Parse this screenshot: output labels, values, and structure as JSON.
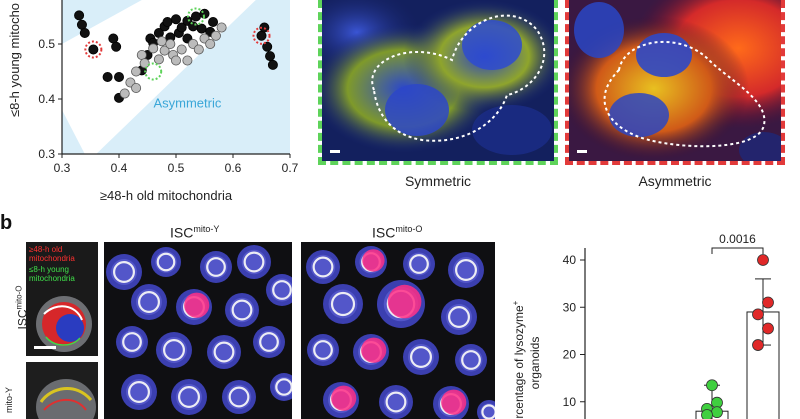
{
  "panel_b_letter": "b",
  "scatter": {
    "ylabel": "≤8-h young mitocho",
    "xlabel": "≥48-h old mitochondria",
    "region_label": "Asymmetric",
    "x_ticks": [
      "0.3",
      "0.4",
      "0.5",
      "0.6",
      "0.7"
    ],
    "y_ticks": [
      "0.5",
      "0.4",
      "0.3"
    ]
  },
  "micrographs": {
    "symmetric_caption": "Symmetric",
    "asymmetric_caption": "Asymmetric"
  },
  "panel_b": {
    "isc_mito_y_base": "ISC",
    "isc_mito_y_sup": "mito-Y",
    "isc_mito_o_base": "ISC",
    "isc_mito_o_sup": "mito-O",
    "side_label_top_base": "ISC",
    "side_label_top_sup": "mito-O",
    "side_label_bottom": "mito-Y",
    "legend_old": "≥48-h old mitochondria",
    "legend_young": "≤8-h young mitochondria"
  },
  "colors": {
    "green_frame": "#5ed35a",
    "red_frame": "#e23a3a",
    "asym_region": "#d9eef9",
    "asym_text": "#3aa6d8",
    "bar_green": "#3fcf3f",
    "bar_red": "#e02828"
  },
  "chart_data": [
    {
      "type": "scatter",
      "xlabel": "≥48-h old mitochondria",
      "ylabel": "≤8-h young mitocho",
      "xlim": [
        0.3,
        0.7
      ],
      "ylim": [
        0.3,
        0.58
      ],
      "annotations": [
        "Asymmetric"
      ],
      "series": [
        {
          "color": "#111111",
          "points": [
            [
              0.33,
              0.552
            ],
            [
              0.335,
              0.535
            ],
            [
              0.34,
              0.52
            ],
            [
              0.355,
              0.49
            ],
            [
              0.39,
              0.51
            ],
            [
              0.395,
              0.495
            ],
            [
              0.38,
              0.44
            ],
            [
              0.4,
              0.402
            ],
            [
              0.4,
              0.44
            ],
            [
              0.44,
              0.452
            ],
            [
              0.45,
              0.48
            ],
            [
              0.455,
              0.51
            ],
            [
              0.46,
              0.502
            ],
            [
              0.47,
              0.52
            ],
            [
              0.48,
              0.532
            ],
            [
              0.485,
              0.54
            ],
            [
              0.49,
              0.512
            ],
            [
              0.5,
              0.545
            ],
            [
              0.505,
              0.52
            ],
            [
              0.51,
              0.53
            ],
            [
              0.52,
              0.542
            ],
            [
              0.52,
              0.51
            ],
            [
              0.53,
              0.532
            ],
            [
              0.535,
              0.55
            ],
            [
              0.545,
              0.528
            ],
            [
              0.55,
              0.555
            ],
            [
              0.56,
              0.522
            ],
            [
              0.565,
              0.54
            ],
            [
              0.65,
              0.515
            ],
            [
              0.655,
              0.53
            ],
            [
              0.66,
              0.495
            ],
            [
              0.665,
              0.478
            ],
            [
              0.67,
              0.462
            ]
          ]
        },
        {
          "color": "#bbbbbb",
          "points": [
            [
              0.42,
              0.43
            ],
            [
              0.43,
              0.45
            ],
            [
              0.44,
              0.48
            ],
            [
              0.445,
              0.465
            ],
            [
              0.46,
              0.492
            ],
            [
              0.47,
              0.472
            ],
            [
              0.475,
              0.505
            ],
            [
              0.48,
              0.488
            ],
            [
              0.49,
              0.5
            ],
            [
              0.495,
              0.48
            ],
            [
              0.5,
              0.47
            ],
            [
              0.51,
              0.49
            ],
            [
              0.52,
              0.47
            ],
            [
              0.53,
              0.5
            ],
            [
              0.54,
              0.49
            ],
            [
              0.55,
              0.51
            ],
            [
              0.56,
              0.5
            ],
            [
              0.57,
              0.515
            ],
            [
              0.58,
              0.53
            ],
            [
              0.41,
              0.41
            ],
            [
              0.43,
              0.42
            ]
          ]
        }
      ]
    },
    {
      "type": "bar",
      "ylabel": "ercentage of lysozyme",
      "ylabel_sup": "+",
      "ylabel_line2": "organoids",
      "y_ticks": [
        "40",
        "30",
        "20",
        "10"
      ],
      "ylim": [
        0,
        40
      ],
      "annotations": [
        "0.0016"
      ],
      "series": [
        {
          "color": "#3fcf3f",
          "value": 8,
          "points": [
            13.5,
            9.8,
            8.5,
            7.8,
            7.2
          ]
        },
        {
          "color": "#e02828",
          "value": 29,
          "error": [
            22,
            36
          ],
          "points": [
            40,
            31,
            28.5,
            25.5,
            22
          ]
        }
      ]
    }
  ]
}
